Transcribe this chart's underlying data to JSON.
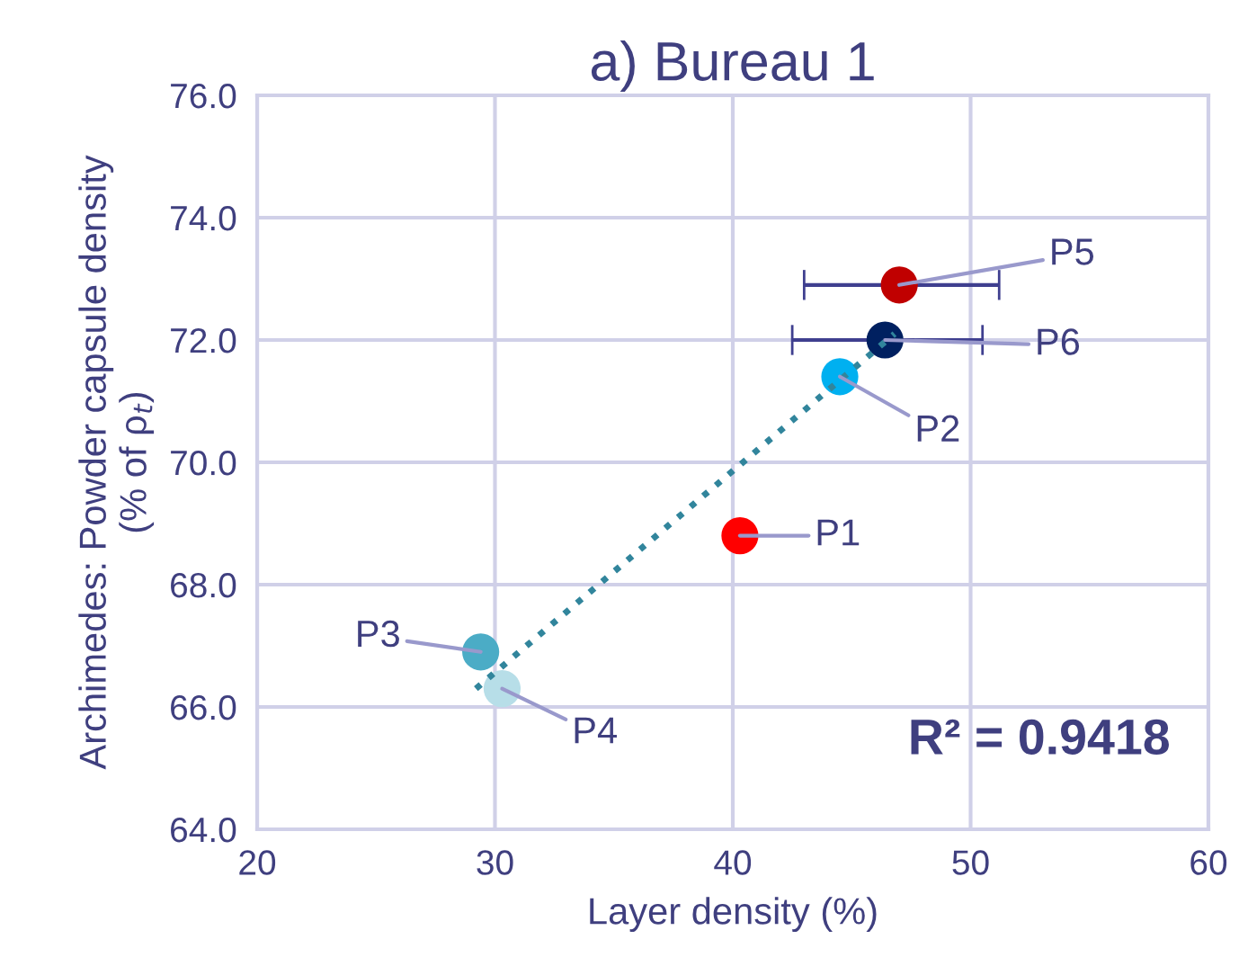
{
  "chart_data": {
    "type": "scatter",
    "title": "a) Bureau 1",
    "xlabel": "Layer density (%)",
    "ylabel": "Archimedes: Powder capsule density\n(% of ρ$_{t}$)",
    "xlim": [
      20,
      60
    ],
    "xticks": [
      20,
      30,
      40,
      50,
      60
    ],
    "ylim": [
      64,
      76
    ],
    "yticks": [
      {
        "value": 64,
        "label": "64.0"
      },
      {
        "value": 66,
        "label": "66.0"
      },
      {
        "value": 68,
        "label": "68.0"
      },
      {
        "value": 70,
        "label": "70.0"
      },
      {
        "value": 72,
        "label": "72.0"
      },
      {
        "value": 74,
        "label": "74.0"
      },
      {
        "value": 76,
        "label": "76.0"
      }
    ],
    "grid": true,
    "marker": "circle",
    "series": [
      {
        "name": "P1",
        "color": "#ff0000",
        "x": [
          40.3
        ],
        "values": [
          68.8
        ]
      },
      {
        "name": "P2",
        "color": "#00b0f0",
        "x": [
          44.5
        ],
        "values": [
          71.4
        ]
      },
      {
        "name": "P3",
        "color": "#4bacc6",
        "x": [
          29.4
        ],
        "values": [
          66.9
        ]
      },
      {
        "name": "P4",
        "color": "#b7dee8",
        "x": [
          30.3
        ],
        "values": [
          66.3
        ]
      },
      {
        "name": "P5",
        "color": "#c00000",
        "x": [
          47.0
        ],
        "values": [
          72.9
        ],
        "xerrors": [
          [
            43.0,
            51.2
          ]
        ]
      },
      {
        "name": "P6",
        "color": "#002060",
        "x": [
          46.4
        ],
        "values": [
          72.0
        ],
        "xerrors": [
          [
            42.5,
            50.5
          ]
        ]
      },
      {
        "type": "line",
        "color": "#31859c",
        "line_style": "dotted",
        "marker": "none",
        "x": [
          29.2,
          46.8
        ],
        "values": [
          66.3,
          72.1
        ]
      }
    ],
    "annotations": [
      "R² = 0.9418"
    ]
  }
}
